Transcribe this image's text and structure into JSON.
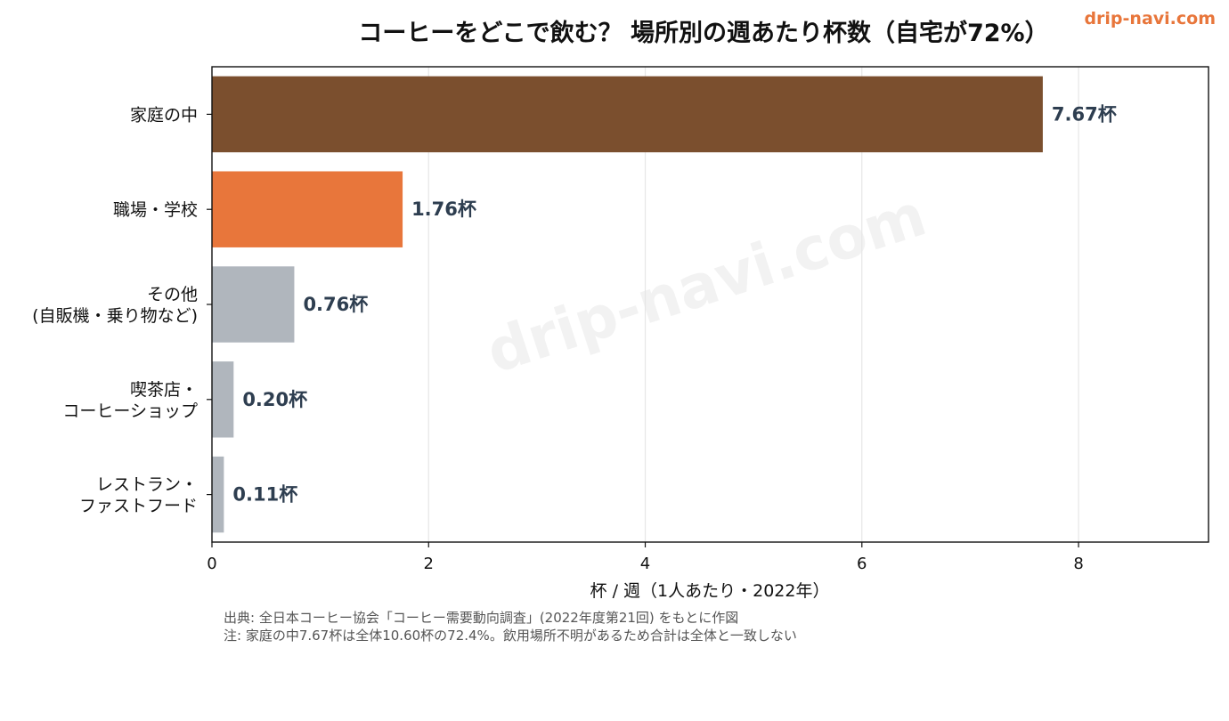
{
  "header": {
    "brand": "drip-navi.com",
    "watermark": "drip-navi.com"
  },
  "chart_data": {
    "type": "bar",
    "orientation": "horizontal",
    "title": "コーヒーをどこで飲む？ 場所別の週あたり杯数（自宅が72%）",
    "xlabel": "杯 / 週（1人あたり・2022年）",
    "ylabel": "",
    "xlim": [
      0,
      9.2
    ],
    "xticks": [
      0,
      2,
      4,
      6,
      8
    ],
    "grid": "vertical",
    "value_suffix": "杯",
    "categories": [
      [
        "家庭の中"
      ],
      [
        "職場・学校"
      ],
      [
        "その他",
        "(自販機・乗り物など)"
      ],
      [
        "喫茶店・",
        "コーヒーショップ"
      ],
      [
        "レストラン・",
        "ファストフード"
      ]
    ],
    "values": [
      7.67,
      1.76,
      0.76,
      0.2,
      0.11
    ],
    "data_labels": [
      "7.67杯",
      "1.76杯",
      "0.76杯",
      "0.20杯",
      "0.11杯"
    ],
    "colors": [
      "#7b4f2e",
      "#e8763b",
      "#b0b6bd",
      "#b0b6bd",
      "#b0b6bd"
    ],
    "label_color": "#2e3e50",
    "grid_color": "#e6e6e6"
  },
  "notes": {
    "source": "出典: 全日本コーヒー協会「コーヒー需要動向調査」(2022年度第21回) をもとに作図",
    "note": "注: 家庭の中7.67杯は全体10.60杯の72.4%。飲用場所不明があるため合計は全体と一致しない"
  }
}
